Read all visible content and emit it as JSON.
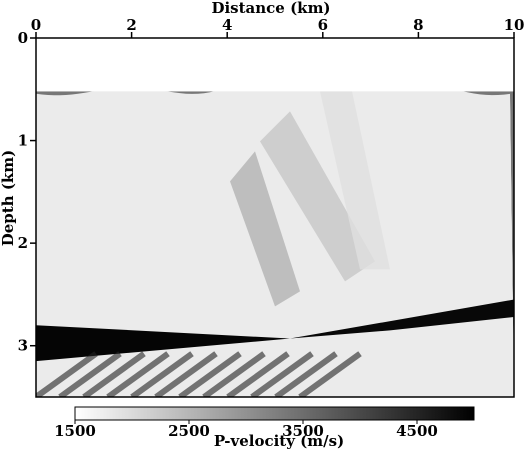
{
  "chart_data": {
    "type": "heatmap",
    "title": "",
    "xlabel": "Distance (km)",
    "ylabel": "Depth (km)",
    "xlim": [
      0,
      10
    ],
    "ylim": [
      0,
      3.5
    ],
    "y_inverted": true,
    "x_ticks": [
      0,
      2,
      4,
      6,
      8,
      10
    ],
    "y_ticks": [
      0,
      1,
      2,
      3
    ],
    "x_tick_labels": [
      "0",
      "2",
      "4",
      "6",
      "8",
      "10"
    ],
    "y_tick_labels": [
      "0",
      "1",
      "2",
      "3"
    ],
    "water_layer_bottom_km": 0.52,
    "colorbar": {
      "label": "P-velocity (m/s)",
      "range": [
        1500,
        5000
      ],
      "colormap": "white-to-black",
      "ticks": [
        1500,
        2500,
        3500,
        4500
      ],
      "tick_labels": [
        "1500",
        "2500",
        "3500",
        "4500"
      ]
    },
    "colors": {
      "low": "#ffffff",
      "high": "#000000"
    }
  }
}
